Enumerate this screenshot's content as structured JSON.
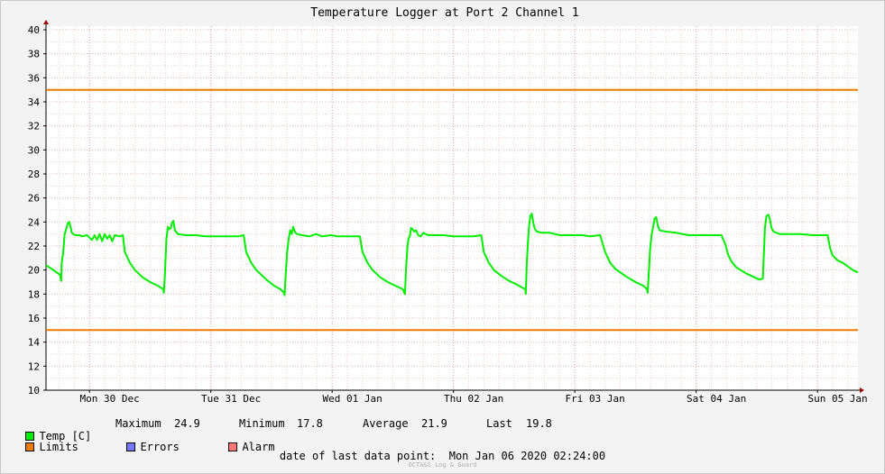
{
  "chart_data": {
    "type": "line",
    "title": "Temperature Logger at Port 2 Channel 1",
    "ylim": [
      10,
      40
    ],
    "yticks": [
      10,
      12,
      14,
      16,
      18,
      20,
      22,
      24,
      26,
      28,
      30,
      32,
      34,
      36,
      38,
      40
    ],
    "x_unit": "hours since Mon 30 Dec 00:00",
    "xlim": [
      -8.6,
      152
    ],
    "day_labels": [
      {
        "label": "Mon 30 Dec",
        "x": 12
      },
      {
        "label": "Tue 31 Dec",
        "x": 36
      },
      {
        "label": "Wed 01 Jan",
        "x": 60
      },
      {
        "label": "Thu 02 Jan",
        "x": 84
      },
      {
        "label": "Fri 03 Jan",
        "x": 108
      },
      {
        "label": "Sat 04 Jan",
        "x": 132
      },
      {
        "label": "Sun 05 Jan",
        "x": 156
      }
    ],
    "series": [
      {
        "name": "Temp [C]",
        "color": "#00ee00",
        "points": [
          [
            -8.6,
            20.4
          ],
          [
            -7.5,
            20.1
          ],
          [
            -6.5,
            19.8
          ],
          [
            -5.8,
            19.6
          ],
          [
            -5.6,
            19.1
          ],
          [
            -5.5,
            20.6
          ],
          [
            -5.2,
            21.5
          ],
          [
            -4.9,
            23.0
          ],
          [
            -4.6,
            23.4
          ],
          [
            -4.3,
            23.9
          ],
          [
            -4.0,
            24.0
          ],
          [
            -3.7,
            23.5
          ],
          [
            -3.5,
            23.1
          ],
          [
            -3.2,
            23.0
          ],
          [
            -2.8,
            22.9
          ],
          [
            -2.0,
            22.9
          ],
          [
            -1.5,
            22.8
          ],
          [
            -0.5,
            22.9
          ],
          [
            0.5,
            22.5
          ],
          [
            1.0,
            22.9
          ],
          [
            1.5,
            22.5
          ],
          [
            2.0,
            23.0
          ],
          [
            2.5,
            22.4
          ],
          [
            3.0,
            23.0
          ],
          [
            3.5,
            22.6
          ],
          [
            4.0,
            22.9
          ],
          [
            4.5,
            22.4
          ],
          [
            5.0,
            22.9
          ],
          [
            6.0,
            22.8
          ],
          [
            6.6,
            22.9
          ],
          [
            7.0,
            21.5
          ],
          [
            8.0,
            20.6
          ],
          [
            9.0,
            20.0
          ],
          [
            10.5,
            19.4
          ],
          [
            12.0,
            19.0
          ],
          [
            13.5,
            18.7
          ],
          [
            14.6,
            18.4
          ],
          [
            14.7,
            18.1
          ],
          [
            14.9,
            19.5
          ],
          [
            15.2,
            22.5
          ],
          [
            15.5,
            23.6
          ],
          [
            15.8,
            23.4
          ],
          [
            16.1,
            23.5
          ],
          [
            16.3,
            23.9
          ],
          [
            16.6,
            24.1
          ],
          [
            16.9,
            23.3
          ],
          [
            17.5,
            23.0
          ],
          [
            19.0,
            22.9
          ],
          [
            21.0,
            22.9
          ],
          [
            23.0,
            22.8
          ],
          [
            25.0,
            22.8
          ],
          [
            27.0,
            22.8
          ],
          [
            29.5,
            22.8
          ],
          [
            30.5,
            22.9
          ],
          [
            31.0,
            21.5
          ],
          [
            32.0,
            20.6
          ],
          [
            33.0,
            20.0
          ],
          [
            35.0,
            19.2
          ],
          [
            36.5,
            18.7
          ],
          [
            37.8,
            18.4
          ],
          [
            38.5,
            18.1
          ],
          [
            38.6,
            17.9
          ],
          [
            38.8,
            19.5
          ],
          [
            39.1,
            21.5
          ],
          [
            39.4,
            22.6
          ],
          [
            39.7,
            23.3
          ],
          [
            40.0,
            23.0
          ],
          [
            40.3,
            23.6
          ],
          [
            40.6,
            23.2
          ],
          [
            41.0,
            23.0
          ],
          [
            42.0,
            22.9
          ],
          [
            43.5,
            22.8
          ],
          [
            44.8,
            23.0
          ],
          [
            46.0,
            22.8
          ],
          [
            47.8,
            22.9
          ],
          [
            49.0,
            22.8
          ],
          [
            52.0,
            22.8
          ],
          [
            53.5,
            22.8
          ],
          [
            54.0,
            21.5
          ],
          [
            55.0,
            20.6
          ],
          [
            56.0,
            20.0
          ],
          [
            57.5,
            19.4
          ],
          [
            59.0,
            19.0
          ],
          [
            60.5,
            18.7
          ],
          [
            62.0,
            18.4
          ],
          [
            62.4,
            18.0
          ],
          [
            62.6,
            20.0
          ],
          [
            62.9,
            22.0
          ],
          [
            63.1,
            22.6
          ],
          [
            63.4,
            22.9
          ],
          [
            63.6,
            23.5
          ],
          [
            63.9,
            23.4
          ],
          [
            64.2,
            23.2
          ],
          [
            64.6,
            23.3
          ],
          [
            65.0,
            22.9
          ],
          [
            65.5,
            22.8
          ],
          [
            66.0,
            23.1
          ],
          [
            66.5,
            23.0
          ],
          [
            67.0,
            22.9
          ],
          [
            68.0,
            22.9
          ],
          [
            70.0,
            22.9
          ],
          [
            72.0,
            22.8
          ],
          [
            74.0,
            22.8
          ],
          [
            76.0,
            22.8
          ],
          [
            77.5,
            22.9
          ],
          [
            78.0,
            21.5
          ],
          [
            79.0,
            20.6
          ],
          [
            80.0,
            20.0
          ],
          [
            81.5,
            19.5
          ],
          [
            83.0,
            19.1
          ],
          [
            84.5,
            18.8
          ],
          [
            86.2,
            18.4
          ],
          [
            86.3,
            18.0
          ],
          [
            86.5,
            20.5
          ],
          [
            86.8,
            22.8
          ],
          [
            87.0,
            23.8
          ],
          [
            87.2,
            24.5
          ],
          [
            87.5,
            24.7
          ],
          [
            87.8,
            23.9
          ],
          [
            88.1,
            23.4
          ],
          [
            88.5,
            23.2
          ],
          [
            89.5,
            23.1
          ],
          [
            91.0,
            23.1
          ],
          [
            93.0,
            22.9
          ],
          [
            95.0,
            22.9
          ],
          [
            97.5,
            22.9
          ],
          [
            99.0,
            22.8
          ],
          [
            101.0,
            22.9
          ],
          [
            102.0,
            21.5
          ],
          [
            103.0,
            20.6
          ],
          [
            104.0,
            20.1
          ],
          [
            106.0,
            19.5
          ],
          [
            108.0,
            19.0
          ],
          [
            109.5,
            18.7
          ],
          [
            110.3,
            18.4
          ],
          [
            110.4,
            18.1
          ],
          [
            110.6,
            19.5
          ],
          [
            110.9,
            21.8
          ],
          [
            111.2,
            23.0
          ],
          [
            111.5,
            23.6
          ],
          [
            111.8,
            24.3
          ],
          [
            112.1,
            24.4
          ],
          [
            112.4,
            23.7
          ],
          [
            112.8,
            23.3
          ],
          [
            114.0,
            23.2
          ],
          [
            116.0,
            23.1
          ],
          [
            118.5,
            22.9
          ],
          [
            120.0,
            22.9
          ],
          [
            122.0,
            22.9
          ],
          [
            125.0,
            22.9
          ],
          [
            125.8,
            22.1
          ],
          [
            126.3,
            21.3
          ],
          [
            127.0,
            20.7
          ],
          [
            128.0,
            20.2
          ],
          [
            130.0,
            19.7
          ],
          [
            131.5,
            19.4
          ],
          [
            132.5,
            19.2
          ],
          [
            133.2,
            19.3
          ],
          [
            133.4,
            21.5
          ],
          [
            133.6,
            23.5
          ],
          [
            133.9,
            24.5
          ],
          [
            134.3,
            24.6
          ],
          [
            134.6,
            24.2
          ],
          [
            134.9,
            23.5
          ],
          [
            135.3,
            23.2
          ],
          [
            136.5,
            23.0
          ],
          [
            138.5,
            23.0
          ],
          [
            140.5,
            23.0
          ],
          [
            143.0,
            22.9
          ],
          [
            145.0,
            22.9
          ],
          [
            146.0,
            22.9
          ],
          [
            146.5,
            21.8
          ],
          [
            147.0,
            21.2
          ],
          [
            148.0,
            20.8
          ],
          [
            149.0,
            20.6
          ],
          [
            150.0,
            20.3
          ],
          [
            151.0,
            20.0
          ],
          [
            152.0,
            19.8
          ]
        ]
      },
      {
        "name": "Limits",
        "color": "#ee7b00",
        "points": [
          [
            -8.6,
            35
          ],
          [
            152,
            35
          ]
        ]
      },
      {
        "name": "Limits",
        "color": "#ee7b00",
        "points": [
          [
            -8.6,
            15
          ],
          [
            152,
            15
          ]
        ]
      }
    ],
    "grid": true,
    "legend_position": "bottom"
  },
  "legend": {
    "temp_label": "Temp [C]",
    "maximum_label": "Maximum",
    "maximum_value": "24.9",
    "minimum_label": "Minimum",
    "minimum_value": "17.8",
    "average_label": "Average",
    "average_value": "21.9",
    "last_label": "Last",
    "last_value": "19.8",
    "limits_label": "Limits",
    "errors_label": "Errors",
    "alarm_label": "Alarm",
    "colors": {
      "temp": "#00ee00",
      "limits": "#ee7b00",
      "errors": "#7777ff",
      "alarm": "#ff7777"
    }
  },
  "footer": {
    "date_label": "date of last data point:",
    "date_value": "Mon Jan 06 2020 02:24:00",
    "watermark": "OCTA&S Log & Guard"
  }
}
